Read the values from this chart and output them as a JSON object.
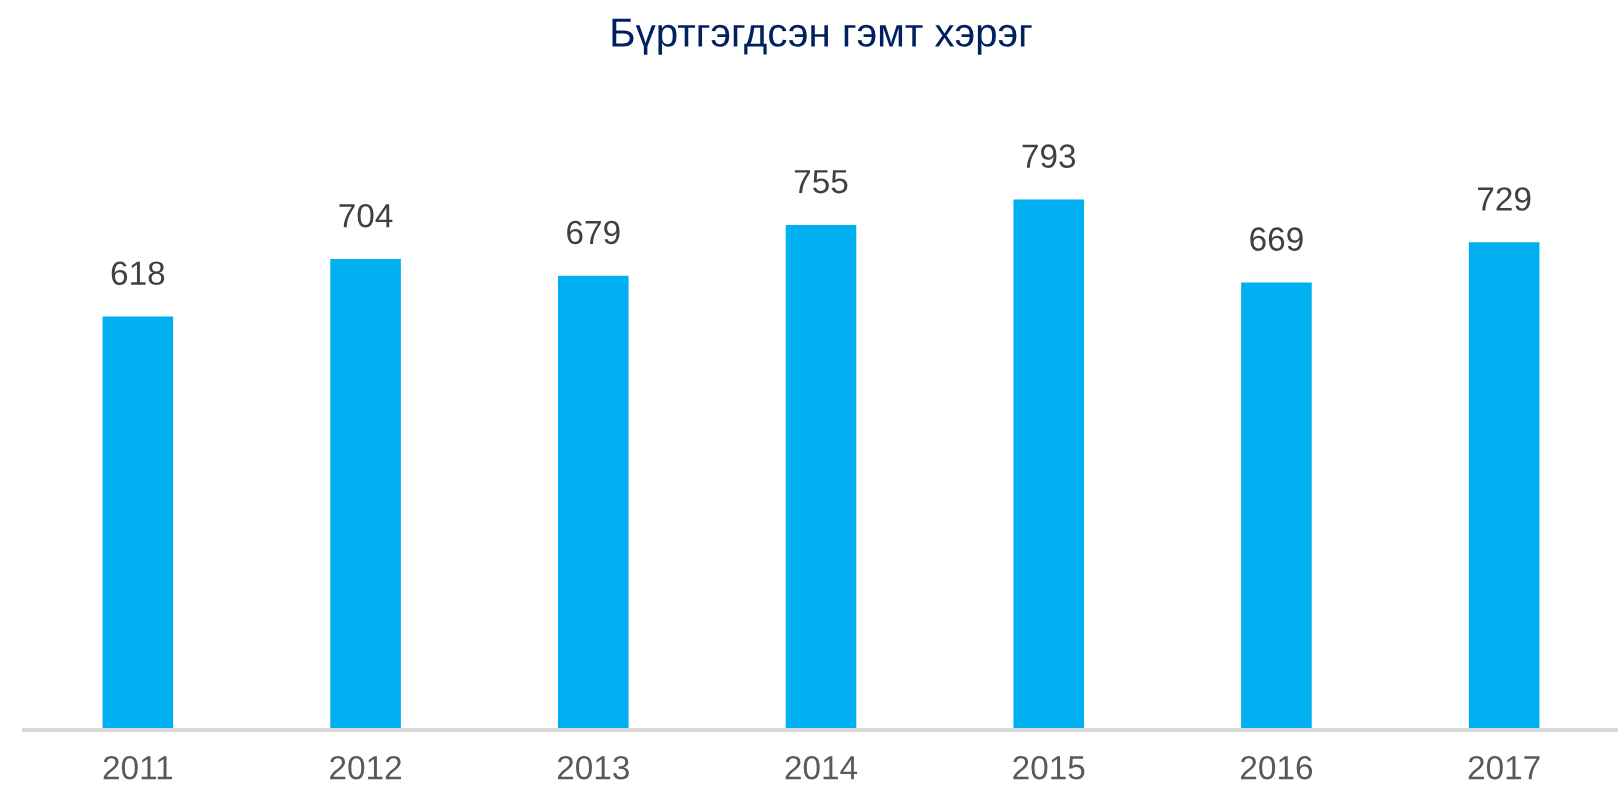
{
  "chart_data": {
    "type": "bar",
    "title": "Бүртгэгдсэн гэмт хэрэг",
    "categories": [
      "2011",
      "2012",
      "2013",
      "2014",
      "2015",
      "2016",
      "2017"
    ],
    "values": [
      618,
      704,
      679,
      755,
      793,
      669,
      729
    ],
    "color": "#00b0f0",
    "data_labels": true,
    "tick_labels": "x",
    "grid": false,
    "legend": false
  }
}
